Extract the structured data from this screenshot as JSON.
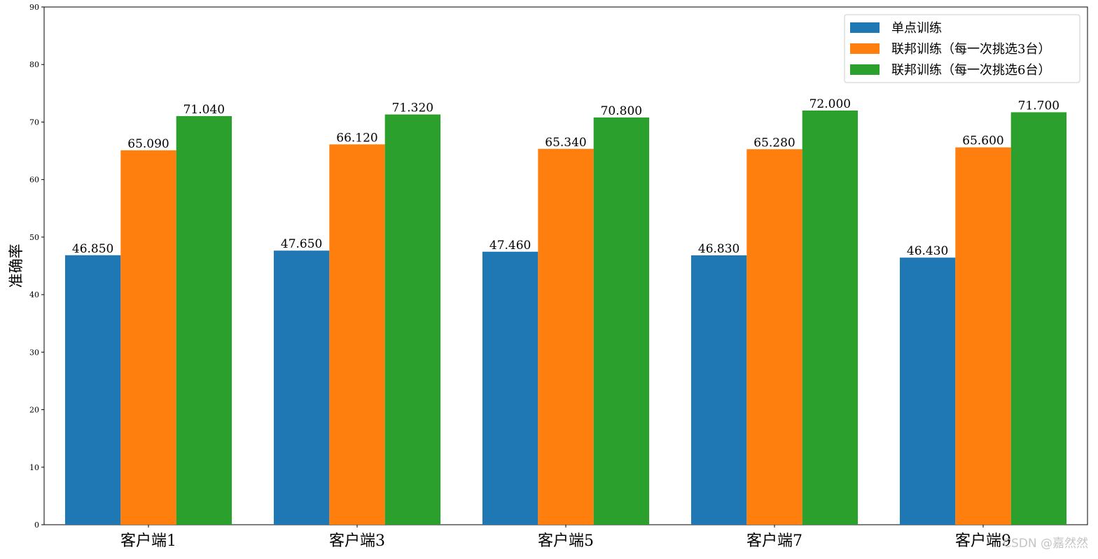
{
  "chart_data": {
    "type": "bar",
    "title": "",
    "xlabel": "",
    "ylabel": "准确率",
    "categories": [
      "客户端1",
      "客户端3",
      "客户端5",
      "客户端7",
      "客户端9"
    ],
    "series": [
      {
        "name": "单点训练",
        "color": "#1f77b4",
        "values": [
          46.85,
          47.65,
          47.46,
          46.83,
          46.43
        ],
        "labels": [
          "46.850",
          "47.650",
          "47.460",
          "46.830",
          "46.430"
        ]
      },
      {
        "name": "联邦训练（每一次挑选3台）",
        "color": "#ff7f0e",
        "values": [
          65.09,
          66.12,
          65.34,
          65.28,
          65.6
        ],
        "labels": [
          "65.090",
          "66.120",
          "65.340",
          "65.280",
          "65.600"
        ]
      },
      {
        "name": "联邦训练（每一次挑选6台）",
        "color": "#2ca02c",
        "values": [
          71.04,
          71.32,
          70.8,
          72.0,
          71.7
        ],
        "labels": [
          "71.040",
          "71.320",
          "70.800",
          "72.000",
          "71.700"
        ]
      }
    ],
    "ylim": [
      0,
      90
    ],
    "yticks": [
      "0",
      "10",
      "20",
      "30",
      "40",
      "50",
      "60",
      "70",
      "80",
      "90"
    ],
    "grid": false,
    "legend_position": "top-right"
  },
  "watermark": "CSDN @嘉然然"
}
